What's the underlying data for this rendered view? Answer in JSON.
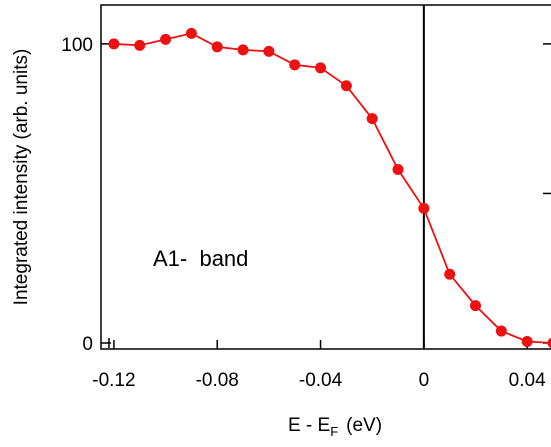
{
  "chart_data": {
    "type": "line",
    "xlabel": {
      "main": "E - E",
      "sub": "F",
      "unit": "(eV)"
    },
    "ylabel": "Integrated intensity (arb. units)",
    "annotation": "A1-  band",
    "xlim": [
      -0.125,
      0.05
    ],
    "ylim": [
      -2,
      113
    ],
    "xticks": [
      -0.12,
      -0.08,
      -0.04,
      0,
      0.04
    ],
    "xtick_labels": [
      "-0.12",
      "-0.08",
      "-0.04",
      "0",
      "0.04"
    ],
    "yticks": [
      0,
      100
    ],
    "ytick_labels": [
      "0",
      "100"
    ],
    "vertical_line_x": 0,
    "grid": false,
    "series": [
      {
        "color": "#ee1111",
        "x": [
          -0.12,
          -0.11,
          -0.1,
          -0.09,
          -0.08,
          -0.07,
          -0.06,
          -0.05,
          -0.04,
          -0.03,
          -0.02,
          -0.01,
          0.0,
          0.01,
          0.02,
          0.03,
          0.04,
          0.05
        ],
        "y": [
          100,
          99.5,
          101.5,
          103.5,
          99,
          98,
          97.5,
          93,
          92,
          86,
          75,
          58,
          45,
          23,
          12.5,
          4,
          0.5,
          0
        ]
      }
    ]
  }
}
